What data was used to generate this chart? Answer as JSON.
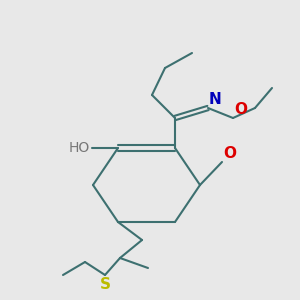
{
  "bg_color": "#e8e8e8",
  "bond_color": "#3d7070",
  "atom_colors": {
    "O_ketone": "#dd0000",
    "O_oxime": "#dd0000",
    "N": "#0000bb",
    "S": "#bbbb00",
    "HO": "#777777"
  },
  "line_width": 1.5,
  "font_size": 10
}
